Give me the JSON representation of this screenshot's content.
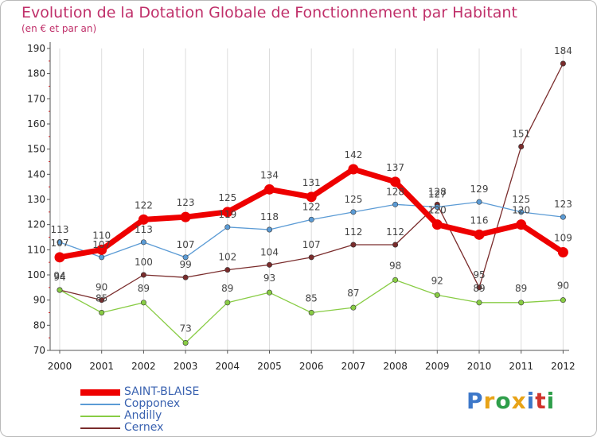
{
  "chart_data": {
    "type": "line",
    "title": "Evolution de la Dotation Globale de Fonctionnement par Habitant",
    "subtitle": "(en € et par an)",
    "xlabel": "",
    "ylabel": "",
    "ylim": [
      70,
      190
    ],
    "yticks": [
      70,
      80,
      90,
      100,
      110,
      120,
      130,
      140,
      150,
      160,
      170,
      180,
      190
    ],
    "categories": [
      "2000",
      "2001",
      "2002",
      "2003",
      "2004",
      "2005",
      "2006",
      "2007",
      "2008",
      "2009",
      "2010",
      "2011",
      "2012"
    ],
    "legend_position": "bottom-left",
    "series": [
      {
        "name": "SAINT-BLAISE",
        "color": "#ee0000",
        "values": [
          107,
          110,
          122,
          123,
          125,
          134,
          131,
          142,
          137,
          120,
          116,
          120,
          109
        ]
      },
      {
        "name": "Copponex",
        "color": "#5b9bd5",
        "values": [
          113,
          107,
          113,
          107,
          119,
          118,
          122,
          125,
          128,
          127,
          129,
          125,
          123
        ]
      },
      {
        "name": "Andilly",
        "color": "#88cc44",
        "values": [
          94,
          85,
          89,
          73,
          89,
          93,
          85,
          87,
          98,
          92,
          89,
          89,
          90
        ]
      },
      {
        "name": "Cernex",
        "color": "#7a2c2c",
        "values": [
          94,
          90,
          100,
          99,
          102,
          104,
          107,
          112,
          112,
          128,
          95,
          151,
          184
        ]
      }
    ]
  },
  "brand": {
    "letters": [
      "P",
      "r",
      "o",
      "x",
      "i",
      "t",
      "i"
    ],
    "colors": [
      "#3d78c9",
      "#e8a317",
      "#2e9e4a",
      "#e8a317",
      "#3d78c9",
      "#d0342c",
      "#2e9e4a"
    ]
  }
}
